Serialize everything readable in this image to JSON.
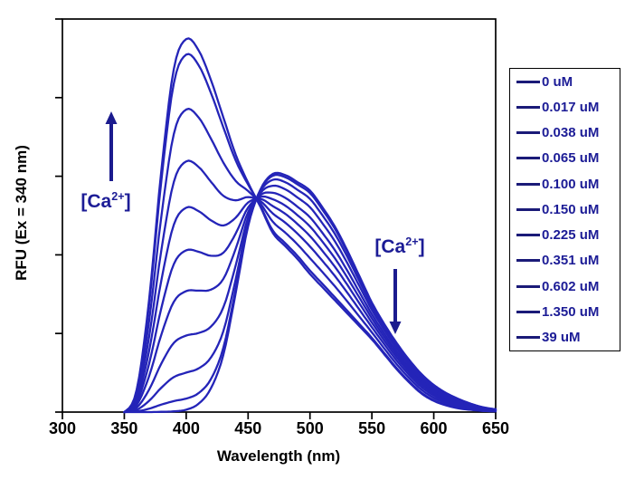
{
  "chart_data": {
    "type": "line",
    "title": "",
    "xlabel": "Wavelength (nm)",
    "ylabel": "RFU (Ex = 340 nm)",
    "xlim": [
      300,
      650
    ],
    "xticks": [
      300,
      350,
      400,
      450,
      500,
      550,
      600,
      650
    ],
    "y_axis": {
      "labeled": false,
      "tick_count": 6,
      "note": "RFU axis has tick marks but no numeric labels"
    },
    "grid": false,
    "excitation_nm": 340,
    "isosbestic_point_nm": 456,
    "line_color": "#2424b8",
    "series": [
      {
        "label": "0 uM",
        "ca_uM": 0,
        "fraction_bound": 0.0
      },
      {
        "label": "0.017 uM",
        "ca_uM": 0.017,
        "fraction_bound": 0.03
      },
      {
        "label": "0.038 uM",
        "ca_uM": 0.038,
        "fraction_bound": 0.1
      },
      {
        "label": "0.065 uM",
        "ca_uM": 0.065,
        "fraction_bound": 0.2
      },
      {
        "label": "0.100 uM",
        "ca_uM": 0.1,
        "fraction_bound": 0.32
      },
      {
        "label": "0.150 uM",
        "ca_uM": 0.15,
        "fraction_bound": 0.43
      },
      {
        "label": "0.225 uM",
        "ca_uM": 0.225,
        "fraction_bound": 0.545
      },
      {
        "label": "0.351 uM",
        "ca_uM": 0.351,
        "fraction_bound": 0.67
      },
      {
        "label": "0.602 uM",
        "ca_uM": 0.602,
        "fraction_bound": 0.81
      },
      {
        "label": "1.350 uM",
        "ca_uM": 1.35,
        "fraction_bound": 0.958
      },
      {
        "label": "39 uM",
        "ca_uM": 39,
        "fraction_bound": 1.0
      }
    ],
    "component_spectra": {
      "wavelength_start_nm": 350,
      "wavelength_step_nm": 10,
      "bound": {
        "peak_nm": 400,
        "rel_amplitude": 0.949,
        "profile": [
          0.0,
          0.06,
          0.3,
          0.65,
          0.92,
          1.0,
          0.97,
          0.89,
          0.79,
          0.69,
          0.615,
          0.55,
          0.48,
          0.445,
          0.41,
          0.37,
          0.335,
          0.3,
          0.265,
          0.23,
          0.195,
          0.155,
          0.115,
          0.08,
          0.05,
          0.03,
          0.018,
          0.01,
          0.006,
          0.003,
          0.002
        ]
      },
      "free": {
        "peak_nm": 472,
        "rel_amplitude": 0.606,
        "profile": [
          0.0,
          0.0,
          0.0,
          0.001,
          0.003,
          0.01,
          0.035,
          0.1,
          0.24,
          0.5,
          0.78,
          0.935,
          1.0,
          0.995,
          0.965,
          0.93,
          0.86,
          0.78,
          0.68,
          0.57,
          0.46,
          0.37,
          0.29,
          0.22,
          0.16,
          0.114,
          0.08,
          0.055,
          0.035,
          0.02,
          0.012
        ]
      }
    },
    "legend_position": "right",
    "legend_line_color": "#1a1a78"
  },
  "annotations": {
    "left": {
      "prefix": "[Ca",
      "sup": "2+",
      "suffix": "]",
      "direction": "up",
      "meaning": "increasing Ca2+ raises the ~400 nm peak"
    },
    "right": {
      "prefix": "[Ca",
      "sup": "2+",
      "suffix": "]",
      "direction": "down",
      "meaning": "increasing Ca2+ lowers the ~475 nm peak"
    }
  },
  "colors": {
    "curve": "#2424b8",
    "legend_line": "#1a1a78",
    "legend_text": "#1c1c96",
    "annotation": "#1b1b8e",
    "axis": "#000000",
    "background": "#ffffff"
  }
}
